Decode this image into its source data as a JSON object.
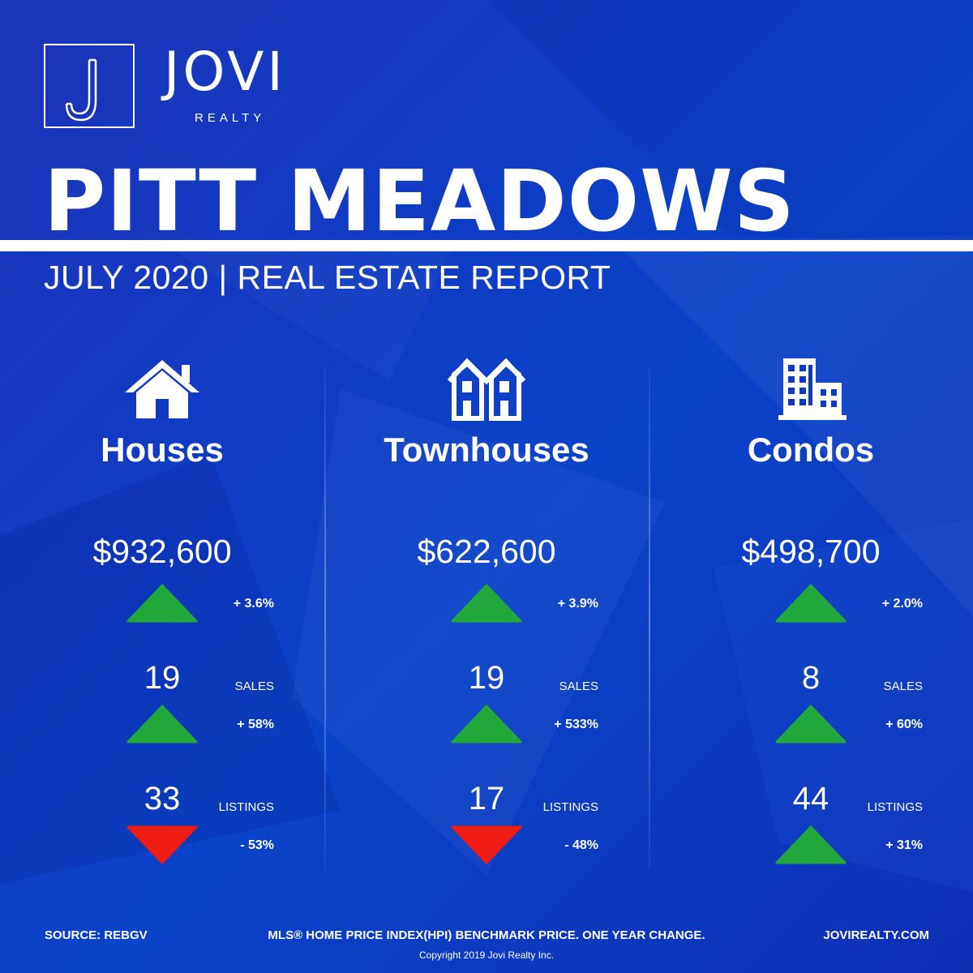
{
  "brand": {
    "name": "JOVI",
    "sub": "REALTY"
  },
  "title": "PITT MEADOWS",
  "subtitle": "JULY 2020 | REAL ESTATE REPORT",
  "columns": [
    {
      "category": "Houses",
      "icon": "house-icon",
      "price": "$932,600",
      "price_change": "+ 3.6%",
      "price_dir": "up",
      "sales": "19",
      "sales_label": "SALES",
      "sales_change": "+ 58%",
      "sales_dir": "up",
      "listings": "33",
      "listings_label": "LISTINGS",
      "listings_change": "- 53%",
      "listings_dir": "down"
    },
    {
      "category": "Townhouses",
      "icon": "townhouse-icon",
      "price": "$622,600",
      "price_change": "+ 3.9%",
      "price_dir": "up",
      "sales": "19",
      "sales_label": "SALES",
      "sales_change": "+ 533%",
      "sales_dir": "up",
      "listings": "17",
      "listings_label": "LISTINGS",
      "listings_change": "- 48%",
      "listings_dir": "down"
    },
    {
      "category": "Condos",
      "icon": "building-icon",
      "price": "$498,700",
      "price_change": "+ 2.0%",
      "price_dir": "up",
      "sales": "8",
      "sales_label": "SALES",
      "sales_change": "+ 60%",
      "sales_dir": "up",
      "listings": "44",
      "listings_label": "LISTINGS",
      "listings_change": "+ 31%",
      "listings_dir": "up"
    }
  ],
  "footer": {
    "source": "SOURCE:  REBGV",
    "note": "MLS® HOME PRICE INDEX(HPI) BENCHMARK PRICE. ONE YEAR CHANGE.",
    "website": "JOVIREALTY.COM",
    "copyright": "Copyright 2019 Jovi Realty Inc."
  },
  "colors": {
    "background": "#1038c0",
    "up": "#22a83a",
    "down": "#ee1c12",
    "text": "#ffffff"
  }
}
